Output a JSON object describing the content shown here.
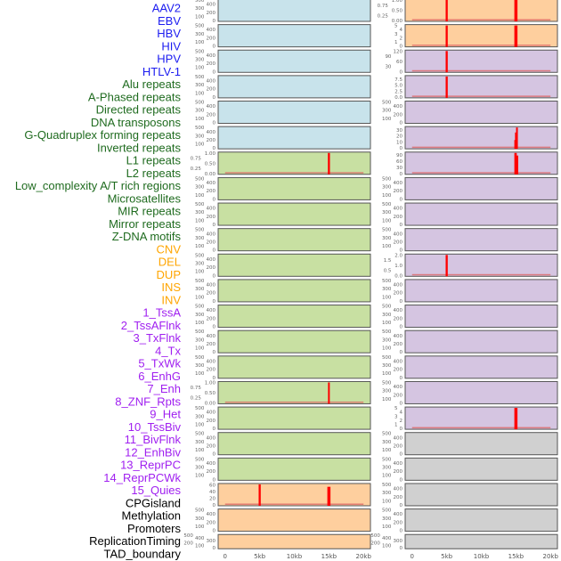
{
  "chart_data": {
    "type": "bar",
    "title": "",
    "xlabel": "",
    "ylabel": "",
    "xlim_kb": [
      -1,
      21
    ],
    "x_ticks": [
      "0",
      "5kb",
      "10kb",
      "15kb",
      "20kb"
    ],
    "x_tick_values_kb": [
      0,
      5,
      10,
      15,
      20
    ],
    "label_groups": [
      {
        "color": "#1c1cf0",
        "labels": [
          "AAV2",
          "EBV",
          "HBV",
          "HIV",
          "HPV",
          "HTLV-1"
        ]
      },
      {
        "color": "#1f6b1f",
        "labels": [
          "Alu repeats",
          "A-Phased repeats",
          "Directed repeats",
          "DNA transposons",
          "G-Quadruplex forming repeats",
          "Inverted repeats",
          "L1 repeats",
          "L2 repeats",
          "Low_complexity A/T rich regions",
          "Microsatellites",
          "MIR repeats",
          "Mirror repeats",
          "Z-DNA motifs"
        ]
      },
      {
        "color": "#ffa500",
        "labels": [
          "CNV",
          "DEL",
          "DUP",
          "INS",
          "INV"
        ]
      },
      {
        "color": "#a020f0",
        "labels": [
          "1_TssA",
          "2_TssAFlnk",
          "3_TxFlnk",
          "4_Tx",
          "5_TxWk",
          "6_EnhG",
          "7_Enh",
          "8_ZNF_Rpts",
          "9_Het",
          "10_TssBiv",
          "11_BivFlnk",
          "12_EnhBiv",
          "13_ReprPC",
          "14_ReprPCWk",
          "15_Quies"
        ]
      },
      {
        "color": "#000000",
        "labels": [
          "CPGisland",
          "Methylation",
          "Promoters",
          "ReplicationTiming",
          "TAD_boundary"
        ]
      }
    ],
    "panel_colors": {
      "blue": "#c8e3eb",
      "green": "#c8e0a2",
      "orange": "#fecf9e",
      "purple": "#d5c5e1",
      "gray": "#d0d0d0"
    },
    "bar_color": "#ff0000",
    "default_ticks": [
      "0",
      "100",
      "200",
      "300",
      "400",
      "500"
    ],
    "panels": [
      {
        "name": "left",
        "rows": [
          {
            "bg": "blue"
          },
          {
            "bg": "blue"
          },
          {
            "bg": "blue"
          },
          {
            "bg": "blue"
          },
          {
            "bg": "blue"
          },
          {
            "bg": "blue"
          },
          {
            "bg": "green",
            "ymax": 1.0,
            "ticks": [
              "0.00",
              "0.25",
              "0.50",
              "0.75",
              "1.00"
            ],
            "bars": [
              {
                "x": 15,
                "w": 0.3,
                "v": 1.0
              }
            ]
          },
          {
            "bg": "green"
          },
          {
            "bg": "green"
          },
          {
            "bg": "green"
          },
          {
            "bg": "green"
          },
          {
            "bg": "green"
          },
          {
            "bg": "green"
          },
          {
            "bg": "green"
          },
          {
            "bg": "green"
          },
          {
            "bg": "green",
            "ymax": 1.0,
            "ticks": [
              "0.00",
              "0.25",
              "0.50",
              "0.75",
              "1.00"
            ],
            "bars": [
              {
                "x": 15,
                "w": 0.25,
                "v": 1.0
              }
            ]
          },
          {
            "bg": "green"
          },
          {
            "bg": "green"
          },
          {
            "bg": "green"
          },
          {
            "bg": "orange",
            "ymax": 62,
            "ticks": [
              "0",
              "20",
              "40",
              "60"
            ],
            "bars": [
              {
                "x": 5,
                "w": 0.3,
                "v": 62
              },
              {
                "x": 15,
                "w": 0.45,
                "v": 55
              }
            ]
          },
          {
            "bg": "orange"
          },
          {
            "bg": "orange"
          }
        ]
      },
      {
        "name": "right",
        "rows": [
          {
            "bg": "orange",
            "ymax": 1.0,
            "ticks": [
              "0.00",
              "0.25",
              "0.50",
              "0.75",
              "1.00"
            ],
            "bars": [
              {
                "x": 5,
                "w": 0.3,
                "v": 1.0
              },
              {
                "x": 15,
                "w": 0.45,
                "v": 1.0
              }
            ]
          },
          {
            "bg": "orange",
            "ymax": 5,
            "ticks": [
              "0",
              "1",
              "2",
              "3",
              "4",
              "5"
            ],
            "bars": [
              {
                "x": 5,
                "w": 0.3,
                "v": 5
              },
              {
                "x": 15,
                "w": 0.45,
                "v": 5
              }
            ]
          },
          {
            "bg": "purple",
            "ymax": 120,
            "ticks": [
              "0",
              "30",
              "60",
              "90",
              "120"
            ],
            "bars": [
              {
                "x": 5,
                "w": 0.3,
                "v": 120
              }
            ]
          },
          {
            "bg": "purple",
            "ymax": 8.7,
            "ticks": [
              "0.0",
              "2.5",
              "5.0",
              "7.5"
            ],
            "bars": [
              {
                "x": 5,
                "w": 0.3,
                "v": 8.7
              }
            ]
          },
          {
            "bg": "purple"
          },
          {
            "bg": "purple",
            "ymax": 34,
            "ticks": [
              "0",
              "10",
              "20",
              "30"
            ],
            "bars": [
              {
                "x": 14.9,
                "w": 0.2,
                "v": 14
              },
              {
                "x": 15.0,
                "w": 0.15,
                "v": 26
              },
              {
                "x": 15.15,
                "w": 0.2,
                "v": 34
              }
            ]
          },
          {
            "bg": "purple",
            "ymax": 100,
            "ticks": [
              "0",
              "30",
              "60",
              "90"
            ],
            "bars": [
              {
                "x": 14.95,
                "w": 0.35,
                "v": 100
              },
              {
                "x": 15.2,
                "w": 0.15,
                "v": 88
              }
            ]
          },
          {
            "bg": "purple"
          },
          {
            "bg": "purple"
          },
          {
            "bg": "purple"
          },
          {
            "bg": "purple",
            "ymax": 2.0,
            "ticks": [
              "0.0",
              "0.5",
              "1.0",
              "1.5",
              "2.0"
            ],
            "bars": [
              {
                "x": 5,
                "w": 0.3,
                "v": 2.0
              }
            ]
          },
          {
            "bg": "purple"
          },
          {
            "bg": "purple"
          },
          {
            "bg": "purple"
          },
          {
            "bg": "purple"
          },
          {
            "bg": "purple"
          },
          {
            "bg": "purple",
            "ymax": 5,
            "ticks": [
              "0",
              "1",
              "2",
              "3",
              "4",
              "5"
            ],
            "bars": [
              {
                "x": 15,
                "w": 0.45,
                "v": 5
              }
            ]
          },
          {
            "bg": "gray"
          },
          {
            "bg": "gray"
          },
          {
            "bg": "gray"
          },
          {
            "bg": "gray"
          },
          {
            "bg": "gray"
          }
        ]
      }
    ]
  }
}
